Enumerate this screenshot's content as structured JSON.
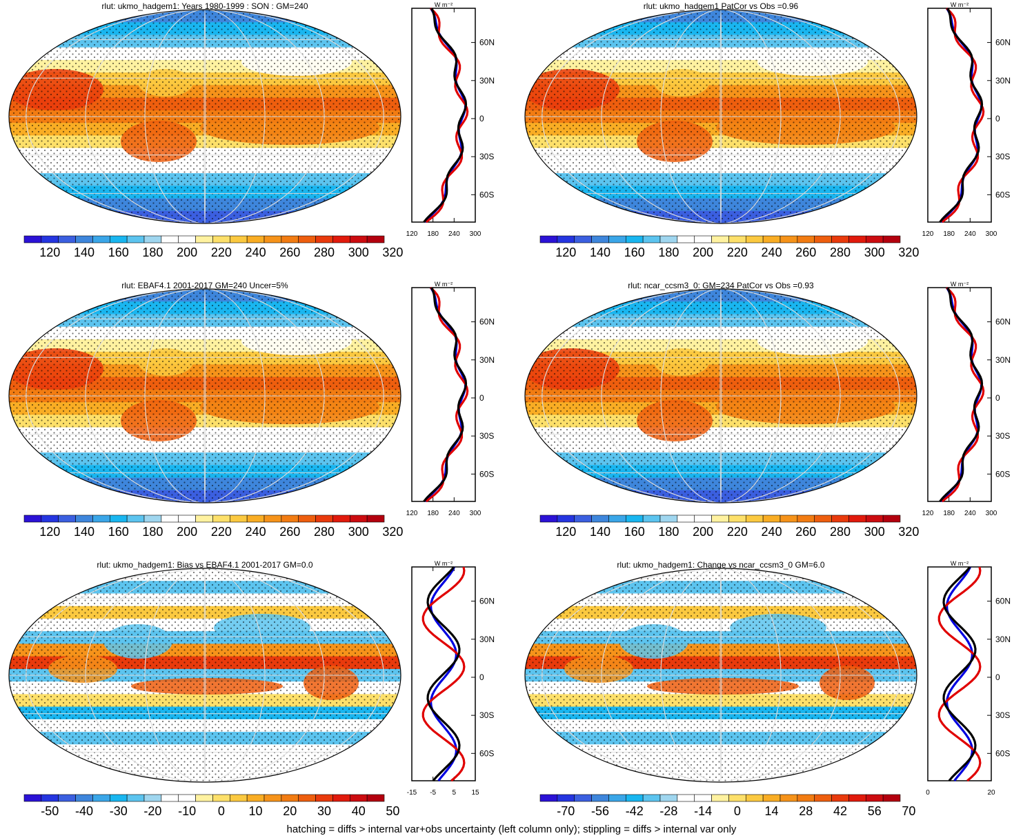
{
  "panels": [
    {
      "id": "p1",
      "title": "rlut: ukmo_hadgem1: Years 1980-1999 : SON : GM=240",
      "colorbar_labels": [
        "120",
        "140",
        "160",
        "180",
        "200",
        "220",
        "240",
        "260",
        "280",
        "300",
        "320"
      ],
      "zonal_x_ticks": [
        "120",
        "180",
        "240",
        "300"
      ],
      "zonal_unit": "W m⁻²",
      "lat_labels": [
        "60N",
        "30N",
        "0",
        "30S",
        "60S"
      ]
    },
    {
      "id": "p2",
      "title": "rlut: ukmo_hadgem1 PatCor vs Obs =0.96",
      "colorbar_labels": [
        "120",
        "140",
        "160",
        "180",
        "200",
        "220",
        "240",
        "260",
        "280",
        "300",
        "320"
      ],
      "zonal_x_ticks": [
        "120",
        "180",
        "240",
        "300"
      ],
      "zonal_unit": "W m⁻²",
      "lat_labels": [
        "60N",
        "30N",
        "0",
        "30S",
        "60S"
      ]
    },
    {
      "id": "p3",
      "title": "rlut: EBAF4.1 2001-2017 GM=240 Uncer=5%",
      "colorbar_labels": [
        "120",
        "140",
        "160",
        "180",
        "200",
        "220",
        "240",
        "260",
        "280",
        "300",
        "320"
      ],
      "zonal_x_ticks": [
        "120",
        "180",
        "240",
        "300"
      ],
      "zonal_unit": "W m⁻²",
      "lat_labels": [
        "60N",
        "30N",
        "0",
        "30S",
        "60S"
      ]
    },
    {
      "id": "p4",
      "title": "rlut: ncar_ccsm3_0: GM=234 PatCor vs Obs =0.93",
      "colorbar_labels": [
        "120",
        "140",
        "160",
        "180",
        "200",
        "220",
        "240",
        "260",
        "280",
        "300",
        "320"
      ],
      "zonal_x_ticks": [
        "120",
        "180",
        "240",
        "300"
      ],
      "zonal_unit": "W m⁻²",
      "lat_labels": [
        "60N",
        "30N",
        "0",
        "30S",
        "60S"
      ]
    },
    {
      "id": "p5",
      "title": "rlut: ukmo_hadgem1: Bias vs EBAF4.1 2001-2017  GM=0.0",
      "colorbar_labels": [
        "-50",
        "-40",
        "-30",
        "-20",
        "-10",
        "0",
        "10",
        "20",
        "30",
        "40",
        "50"
      ],
      "zonal_x_ticks": [
        "-15",
        "-5",
        "5",
        "15"
      ],
      "zonal_unit": "W m⁻²",
      "lat_labels": [
        "60N",
        "30N",
        "0",
        "30S",
        "60S"
      ]
    },
    {
      "id": "p6",
      "title": "rlut: ukmo_hadgem1: Change vs ncar_ccsm3_0 GM=6.0",
      "colorbar_labels": [
        "-70",
        "-56",
        "-42",
        "-28",
        "-14",
        "0",
        "14",
        "28",
        "42",
        "56",
        "70"
      ],
      "zonal_x_ticks": [
        "0",
        "20"
      ],
      "zonal_unit": "W m⁻²",
      "lat_labels": [
        "60N",
        "30N",
        "0",
        "30S",
        "60S"
      ]
    }
  ],
  "footer": "hatching = diffs > internal var+obs uncertainty (left column only); stippling = diffs > internal var only",
  "colors": {
    "scale": [
      "#2b12d6",
      "#2535e0",
      "#3b5fe0",
      "#3e86dc",
      "#3aa6e8",
      "#19b6f0",
      "#5cc4ef",
      "#9fd6ef",
      "#ffffff",
      "#ffffff",
      "#fff2a0",
      "#fde06a",
      "#fbc940",
      "#f9ad24",
      "#f6931a",
      "#f27c12",
      "#ee5e0e",
      "#e93a0c",
      "#e11a0c",
      "#cc0c10",
      "#b3000e"
    ],
    "model_line": "#e00000",
    "obs_line": "#0000e0",
    "ref_line": "#000000"
  }
}
